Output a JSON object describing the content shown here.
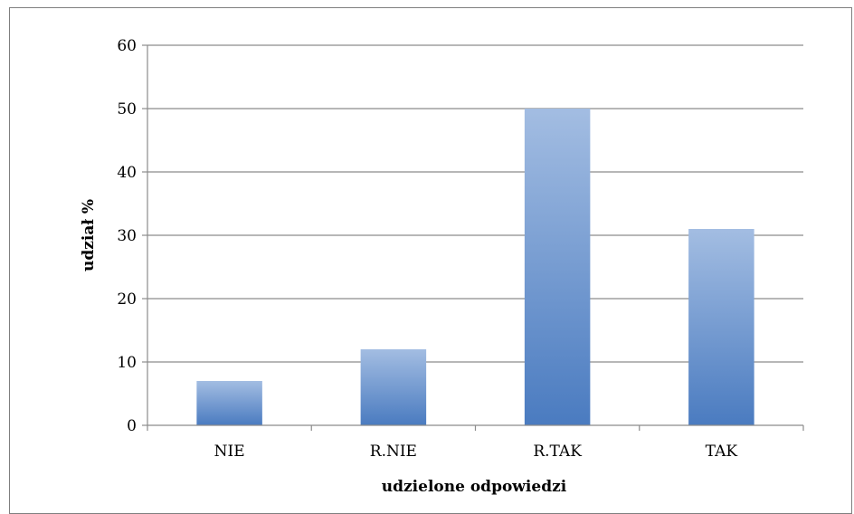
{
  "chart_data": {
    "type": "bar",
    "categories": [
      "NIE",
      "R.NIE",
      "R.TAK",
      "TAK"
    ],
    "values": [
      7,
      12,
      50,
      31
    ],
    "title": "",
    "xlabel": "udzielone odpowiedzi",
    "ylabel": "udział %",
    "ylim": [
      0,
      60
    ],
    "yticks": [
      0,
      10,
      20,
      30,
      40,
      50,
      60
    ],
    "grid": true,
    "legend": "none",
    "colors": {
      "bar_top": "#a3bde2",
      "bar_bottom": "#4a7bc0",
      "grid": "#8c8c8c",
      "axis": "#8c8c8c",
      "frame": "#7f7f7f"
    }
  }
}
